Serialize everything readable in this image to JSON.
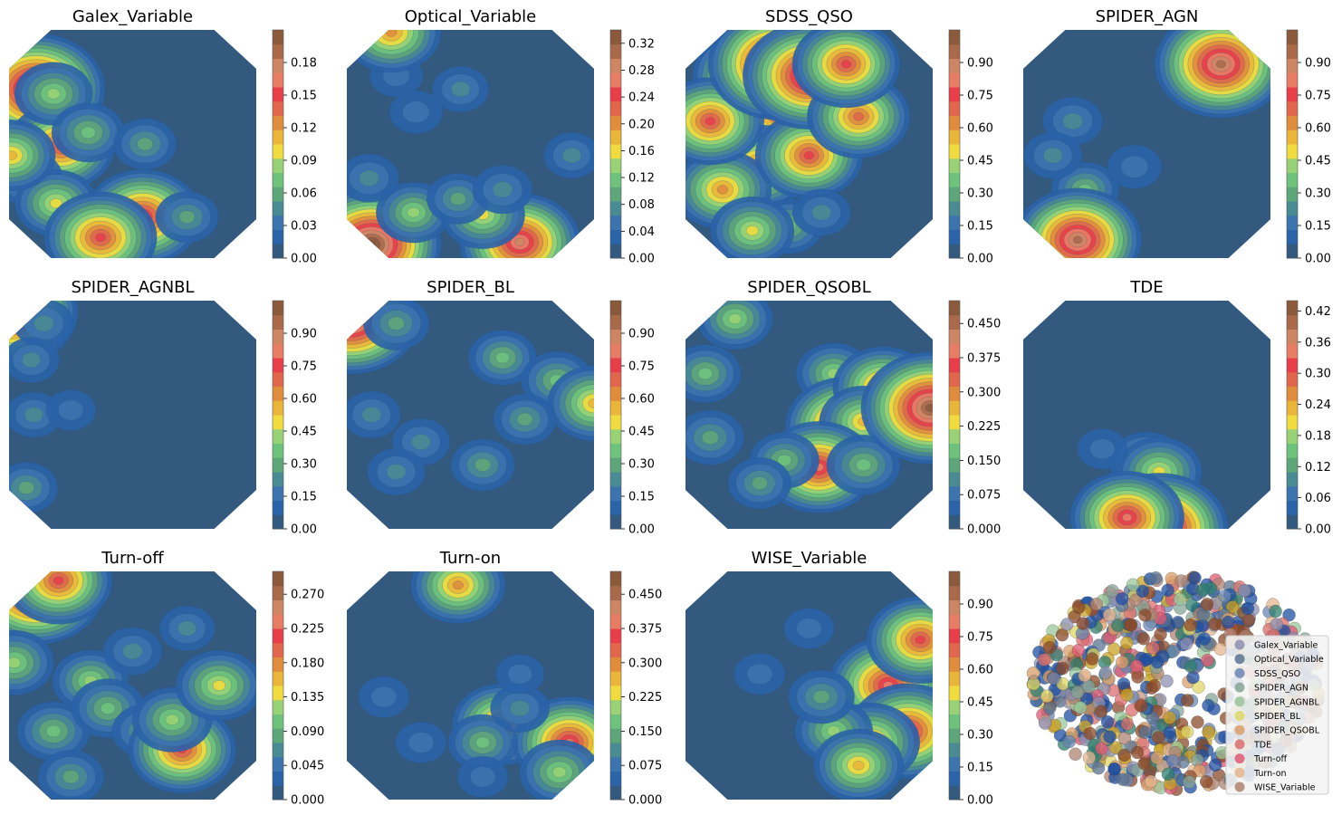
{
  "chart_data": [
    {
      "type": "heatmap",
      "title": "Galex_Variable",
      "colorbar_ticks": [
        "0.00",
        "0.03",
        "0.06",
        "0.09",
        "0.12",
        "0.15",
        "0.18"
      ],
      "colorbar_range": [
        0,
        0.21
      ],
      "regions": [
        {
          "x": 0.11,
          "y": 0.74,
          "v": 0.2
        },
        {
          "x": 0.21,
          "y": 0.49,
          "v": 0.14
        },
        {
          "x": 0.18,
          "y": 0.72,
          "v": 0.08
        },
        {
          "x": 0.32,
          "y": 0.55,
          "v": 0.07
        },
        {
          "x": 0.55,
          "y": 0.5,
          "v": 0.05
        },
        {
          "x": 0.08,
          "y": 0.35,
          "v": 0.06
        },
        {
          "x": 0.19,
          "y": 0.24,
          "v": 0.09
        },
        {
          "x": 0.54,
          "y": 0.18,
          "v": 0.16
        },
        {
          "x": 0.37,
          "y": 0.09,
          "v": 0.15
        },
        {
          "x": 0.72,
          "y": 0.18,
          "v": 0.05
        },
        {
          "x": 0.01,
          "y": 0.45,
          "v": 0.1
        }
      ]
    },
    {
      "type": "heatmap",
      "title": "Optical_Variable",
      "colorbar_ticks": [
        "0.00",
        "0.04",
        "0.08",
        "0.12",
        "0.16",
        "0.20",
        "0.24",
        "0.28",
        "0.32"
      ],
      "colorbar_range": [
        0,
        0.34
      ],
      "regions": [
        {
          "x": 0.7,
          "y": 0.07,
          "v": 0.27
        },
        {
          "x": 0.1,
          "y": 0.06,
          "v": 0.33
        },
        {
          "x": 0.27,
          "y": 0.2,
          "v": 0.12
        },
        {
          "x": 0.55,
          "y": 0.19,
          "v": 0.15
        },
        {
          "x": 0.45,
          "y": 0.26,
          "v": 0.08
        },
        {
          "x": 0.63,
          "y": 0.3,
          "v": 0.07
        },
        {
          "x": 0.09,
          "y": 0.35,
          "v": 0.07
        },
        {
          "x": 0.91,
          "y": 0.45,
          "v": 0.06
        },
        {
          "x": 0.2,
          "y": 0.8,
          "v": 0.05
        },
        {
          "x": 0.46,
          "y": 0.74,
          "v": 0.06
        },
        {
          "x": 0.28,
          "y": 0.64,
          "v": 0.05
        },
        {
          "x": 0.18,
          "y": 0.99,
          "v": 0.2
        }
      ]
    },
    {
      "type": "heatmap",
      "title": "SDSS_QSO",
      "colorbar_ticks": [
        "0.00",
        "0.15",
        "0.30",
        "0.45",
        "0.60",
        "0.75",
        "0.90"
      ],
      "colorbar_range": [
        0,
        1.05
      ],
      "regions": [
        {
          "x": 0.4,
          "y": 0.65,
          "v": 0.82
        },
        {
          "x": 0.25,
          "y": 0.8,
          "v": 0.72
        },
        {
          "x": 0.55,
          "y": 0.8,
          "v": 0.78
        },
        {
          "x": 0.3,
          "y": 0.4,
          "v": 0.66
        },
        {
          "x": 0.15,
          "y": 0.3,
          "v": 0.6
        },
        {
          "x": 0.5,
          "y": 0.45,
          "v": 0.7
        },
        {
          "x": 0.1,
          "y": 0.6,
          "v": 0.7
        },
        {
          "x": 0.42,
          "y": 0.14,
          "v": 0.3
        },
        {
          "x": 0.55,
          "y": 0.2,
          "v": 0.2
        },
        {
          "x": 0.27,
          "y": 0.12,
          "v": 0.46
        },
        {
          "x": 0.37,
          "y": 0.85,
          "v": 1.0
        },
        {
          "x": 0.5,
          "y": 0.8,
          "v": 0.95
        },
        {
          "x": 0.7,
          "y": 0.62,
          "v": 0.65
        },
        {
          "x": 0.65,
          "y": 0.85,
          "v": 0.7
        }
      ]
    },
    {
      "type": "heatmap",
      "title": "SPIDER_AGN",
      "colorbar_ticks": [
        "0.00",
        "0.15",
        "0.30",
        "0.45",
        "0.60",
        "0.75",
        "0.90"
      ],
      "colorbar_range": [
        0,
        1.05
      ],
      "regions": [
        {
          "x": 0.2,
          "y": 0.6,
          "v": 0.22
        },
        {
          "x": 0.25,
          "y": 0.3,
          "v": 0.3
        },
        {
          "x": 0.12,
          "y": 0.45,
          "v": 0.2
        },
        {
          "x": 0.3,
          "y": 0.12,
          "v": 0.4
        },
        {
          "x": 0.22,
          "y": 0.08,
          "v": 0.9
        },
        {
          "x": 0.8,
          "y": 0.85,
          "v": 0.95
        },
        {
          "x": 0.45,
          "y": 0.4,
          "v": 0.16
        }
      ]
    },
    {
      "type": "heatmap",
      "title": "SPIDER_AGNBL",
      "colorbar_ticks": [
        "0.00",
        "0.15",
        "0.30",
        "0.45",
        "0.60",
        "0.75",
        "0.90"
      ],
      "colorbar_range": [
        0,
        1.05
      ],
      "regions": [
        {
          "x": 0.01,
          "y": 0.95,
          "v": 0.95
        },
        {
          "x": 0.14,
          "y": 0.9,
          "v": 0.22
        },
        {
          "x": 0.09,
          "y": 0.74,
          "v": 0.18
        },
        {
          "x": 0.1,
          "y": 0.5,
          "v": 0.18
        },
        {
          "x": 0.07,
          "y": 0.18,
          "v": 0.25
        },
        {
          "x": 0.25,
          "y": 0.52,
          "v": 0.12
        }
      ]
    },
    {
      "type": "heatmap",
      "title": "SPIDER_BL",
      "colorbar_ticks": [
        "0.00",
        "0.15",
        "0.30",
        "0.45",
        "0.60",
        "0.75",
        "0.90"
      ],
      "colorbar_range": [
        0,
        1.05
      ],
      "regions": [
        {
          "x": 0.02,
          "y": 0.92,
          "v": 0.98
        },
        {
          "x": 0.2,
          "y": 0.9,
          "v": 0.28
        },
        {
          "x": 0.63,
          "y": 0.75,
          "v": 0.3
        },
        {
          "x": 0.85,
          "y": 0.65,
          "v": 0.34
        },
        {
          "x": 1.0,
          "y": 0.55,
          "v": 0.55
        },
        {
          "x": 0.72,
          "y": 0.48,
          "v": 0.25
        },
        {
          "x": 0.55,
          "y": 0.28,
          "v": 0.26
        },
        {
          "x": 0.3,
          "y": 0.38,
          "v": 0.2
        },
        {
          "x": 0.1,
          "y": 0.5,
          "v": 0.2
        },
        {
          "x": 0.2,
          "y": 0.25,
          "v": 0.2
        }
      ]
    },
    {
      "type": "heatmap",
      "title": "SPIDER_QSOBL",
      "colorbar_ticks": [
        "0.000",
        "0.075",
        "0.150",
        "0.225",
        "0.300",
        "0.375",
        "0.450"
      ],
      "colorbar_range": [
        0,
        0.5
      ],
      "regions": [
        {
          "x": 0.2,
          "y": 0.92,
          "v": 0.18
        },
        {
          "x": 0.08,
          "y": 0.68,
          "v": 0.16
        },
        {
          "x": 0.6,
          "y": 0.68,
          "v": 0.18
        },
        {
          "x": 0.65,
          "y": 0.45,
          "v": 0.4
        },
        {
          "x": 0.8,
          "y": 0.62,
          "v": 0.3
        },
        {
          "x": 0.72,
          "y": 0.47,
          "v": 0.24
        },
        {
          "x": 0.54,
          "y": 0.27,
          "v": 0.36
        },
        {
          "x": 0.72,
          "y": 0.28,
          "v": 0.17
        },
        {
          "x": 0.99,
          "y": 0.53,
          "v": 0.48
        },
        {
          "x": 0.4,
          "y": 0.3,
          "v": 0.15
        },
        {
          "x": 0.1,
          "y": 0.4,
          "v": 0.14
        },
        {
          "x": 0.3,
          "y": 0.2,
          "v": 0.12
        }
      ]
    },
    {
      "type": "heatmap",
      "title": "TDE",
      "colorbar_ticks": [
        "0.00",
        "0.06",
        "0.12",
        "0.18",
        "0.24",
        "0.30",
        "0.36",
        "0.42"
      ],
      "colorbar_range": [
        0,
        0.44
      ],
      "regions": [
        {
          "x": 0.5,
          "y": 0.29,
          "v": 0.16
        },
        {
          "x": 0.55,
          "y": 0.25,
          "v": 0.2
        },
        {
          "x": 0.32,
          "y": 0.35,
          "v": 0.05
        },
        {
          "x": 0.55,
          "y": 0.0,
          "v": 0.42
        },
        {
          "x": 0.42,
          "y": 0.05,
          "v": 0.32
        }
      ]
    },
    {
      "type": "heatmap",
      "title": "Turn-off",
      "colorbar_ticks": [
        "0.000",
        "0.045",
        "0.090",
        "0.135",
        "0.180",
        "0.225",
        "0.270"
      ],
      "colorbar_range": [
        0,
        0.3
      ],
      "regions": [
        {
          "x": 0.11,
          "y": 0.92,
          "v": 0.28
        },
        {
          "x": 0.2,
          "y": 0.96,
          "v": 0.2
        },
        {
          "x": 0.02,
          "y": 0.6,
          "v": 0.12
        },
        {
          "x": 0.18,
          "y": 0.3,
          "v": 0.1
        },
        {
          "x": 0.33,
          "y": 0.52,
          "v": 0.11
        },
        {
          "x": 0.4,
          "y": 0.4,
          "v": 0.1
        },
        {
          "x": 0.55,
          "y": 0.3,
          "v": 0.08
        },
        {
          "x": 0.7,
          "y": 0.22,
          "v": 0.2
        },
        {
          "x": 0.66,
          "y": 0.35,
          "v": 0.12
        },
        {
          "x": 0.85,
          "y": 0.5,
          "v": 0.14
        },
        {
          "x": 0.5,
          "y": 0.65,
          "v": 0.06
        },
        {
          "x": 0.72,
          "y": 0.75,
          "v": 0.05
        },
        {
          "x": 0.25,
          "y": 0.1,
          "v": 0.08
        }
      ]
    },
    {
      "type": "heatmap",
      "title": "Turn-on",
      "colorbar_ticks": [
        "0.000",
        "0.075",
        "0.150",
        "0.225",
        "0.300",
        "0.375",
        "0.450"
      ],
      "colorbar_range": [
        0,
        0.5
      ],
      "regions": [
        {
          "x": 0.45,
          "y": 0.94,
          "v": 0.27
        },
        {
          "x": 0.63,
          "y": 0.33,
          "v": 0.3
        },
        {
          "x": 0.9,
          "y": 0.25,
          "v": 0.36
        },
        {
          "x": 0.86,
          "y": 0.12,
          "v": 0.2
        },
        {
          "x": 0.55,
          "y": 0.25,
          "v": 0.15
        },
        {
          "x": 0.7,
          "y": 0.4,
          "v": 0.1
        },
        {
          "x": 0.3,
          "y": 0.25,
          "v": 0.06
        },
        {
          "x": 0.15,
          "y": 0.45,
          "v": 0.06
        },
        {
          "x": 0.55,
          "y": 0.1,
          "v": 0.06
        },
        {
          "x": 0.7,
          "y": 0.55,
          "v": 0.05
        }
      ]
    },
    {
      "type": "heatmap",
      "title": "WISE_Variable",
      "colorbar_ticks": [
        "0.00",
        "0.15",
        "0.30",
        "0.45",
        "0.60",
        "0.75",
        "0.90"
      ],
      "colorbar_range": [
        0,
        1.05
      ],
      "regions": [
        {
          "x": 0.82,
          "y": 0.5,
          "v": 0.82
        },
        {
          "x": 0.9,
          "y": 0.3,
          "v": 0.8
        },
        {
          "x": 0.75,
          "y": 0.25,
          "v": 0.6
        },
        {
          "x": 0.95,
          "y": 0.7,
          "v": 0.7
        },
        {
          "x": 0.6,
          "y": 0.3,
          "v": 0.4
        },
        {
          "x": 0.7,
          "y": 0.15,
          "v": 0.52
        },
        {
          "x": 0.55,
          "y": 0.45,
          "v": 0.28
        },
        {
          "x": 0.3,
          "y": 0.55,
          "v": 0.13
        },
        {
          "x": 0.5,
          "y": 0.75,
          "v": 0.12
        }
      ]
    },
    {
      "type": "scatter",
      "legend_placement": "right",
      "legend": [
        {
          "label": "Galex_Variable",
          "color": "#8d8fb0"
        },
        {
          "label": "Optical_Variable",
          "color": "#5a7393"
        },
        {
          "label": "SDSS_QSO",
          "color": "#6985b4"
        },
        {
          "label": "SPIDER_AGN",
          "color": "#86a497"
        },
        {
          "label": "SPIDER_AGNBL",
          "color": "#9ac69c"
        },
        {
          "label": "SPIDER_BL",
          "color": "#ddd66a"
        },
        {
          "label": "SPIDER_QSOBL",
          "color": "#d89f6a"
        },
        {
          "label": "TDE",
          "color": "#d86d6d"
        },
        {
          "label": "Turn-off",
          "color": "#de5a74"
        },
        {
          "label": "Turn-on",
          "color": "#e3b58f"
        },
        {
          "label": "WISE_Variable",
          "color": "#ad8371"
        }
      ]
    }
  ]
}
